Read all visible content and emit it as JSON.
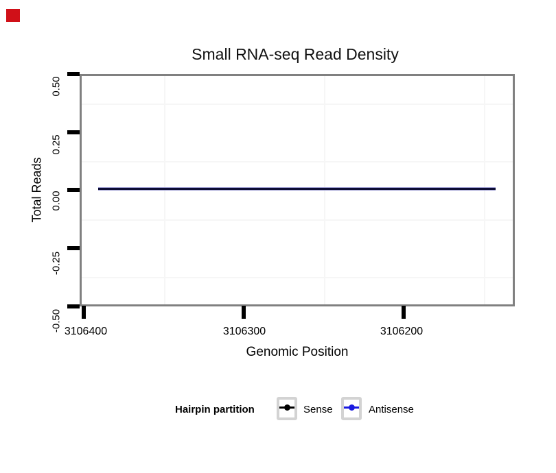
{
  "marker": {
    "color": "#d01018"
  },
  "chart_data": {
    "type": "line",
    "title": "Small RNA-seq Read Density",
    "xlabel": "Genomic Position",
    "ylabel": "Total Reads",
    "x_axis_reversed": true,
    "x_ticks": [
      3106400,
      3106300,
      3106200
    ],
    "x_tick_labels": [
      "3106400",
      "3106300",
      "3106200"
    ],
    "xlim": [
      3106403,
      3106131
    ],
    "y_ticks": [
      0.5,
      0.25,
      0,
      -0.25,
      -0.5
    ],
    "y_tick_labels": [
      "0.50",
      "0.25",
      "0.00",
      "-0.25",
      "-0.50"
    ],
    "ylim": [
      -0.5,
      0.5
    ],
    "grid": "very faint minor gridlines only, white panel, gray panel border",
    "panel_border_color": "#808080",
    "series": [
      {
        "name": "Sense",
        "color": "#000000",
        "x": [
          3106391,
          3106142
        ],
        "y": [
          0,
          0
        ]
      },
      {
        "name": "Antisense",
        "color": "#1a1ae0",
        "x": [
          3106391,
          3106142
        ],
        "y": [
          0,
          0
        ]
      }
    ],
    "plotted_line": {
      "description": "Sense and Antisense overlap as one flat line at y = 0 across the region",
      "rendered_color": "#0d0d35"
    },
    "legend": {
      "title": "Hairpin partition",
      "position": "bottom",
      "entries": [
        "Sense",
        "Antisense"
      ]
    }
  },
  "legend": {
    "title": "Hairpin partition",
    "key_box_border_color": "#d3d3d3",
    "items": [
      {
        "label": "Sense",
        "color": "#000000"
      },
      {
        "label": "Antisense",
        "color": "#1a1ae0"
      }
    ]
  }
}
